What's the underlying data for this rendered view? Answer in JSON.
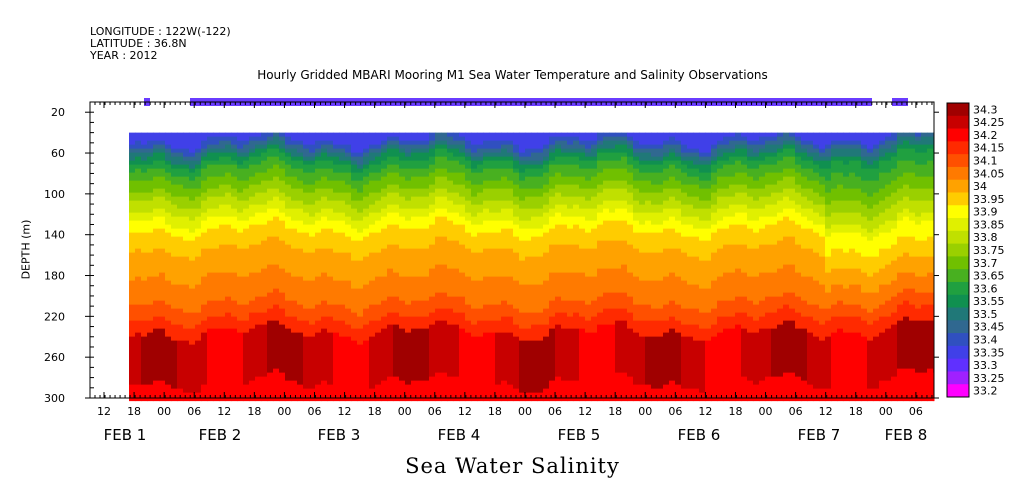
{
  "header": {
    "longitude": "LONGITUDE : 122W(-122)",
    "latitude": "LATITUDE : 36.8N",
    "year": "YEAR : 2012"
  },
  "chart_data": {
    "type": "heatmap",
    "title": "Hourly Gridded MBARI Mooring M1 Sea Water Temperature and Salinity Observations",
    "xlabel": "Sea Water Salinity",
    "ylabel": "DEPTH (m)",
    "y_ticks": [
      20,
      60,
      100,
      140,
      180,
      220,
      260,
      300
    ],
    "ylim": [
      300,
      10
    ],
    "x_hour_ticks": [
      "12",
      "18",
      "00",
      "06",
      "12",
      "18",
      "00",
      "06",
      "12",
      "18",
      "00",
      "06",
      "12",
      "18",
      "00",
      "06",
      "12",
      "18",
      "00",
      "06",
      "12",
      "18",
      "00",
      "06",
      "12",
      "18",
      "00",
      "06"
    ],
    "x_date_labels": [
      "FEB  1",
      "FEB  2",
      "FEB  3",
      "FEB  4",
      "FEB  5",
      "FEB  6",
      "FEB  7",
      "FEB  8"
    ],
    "colorbar_levels": [
      "34.3",
      "34.25",
      "34.2",
      "34.15",
      "34.1",
      "34.05",
      "34",
      "33.95",
      "33.9",
      "33.85",
      "33.8",
      "33.75",
      "33.7",
      "33.65",
      "33.6",
      "33.55",
      "33.5",
      "33.45",
      "33.4",
      "33.35",
      "33.3",
      "33.25",
      "33.2"
    ],
    "colorbar_colors": [
      "#a00000",
      "#c80000",
      "#ff0000",
      "#ff2a00",
      "#ff5000",
      "#ff7a00",
      "#ffa200",
      "#ffcc00",
      "#ffff00",
      "#e0f000",
      "#c0e000",
      "#9ad000",
      "#70c000",
      "#48b020",
      "#20a040",
      "#109050",
      "#207878",
      "#306890",
      "#3050c0",
      "#4040e8",
      "#6030ff",
      "#a020ff",
      "#ff00ff"
    ],
    "surface_band": {
      "depth_m": 10,
      "color": "#6a3cff"
    }
  }
}
